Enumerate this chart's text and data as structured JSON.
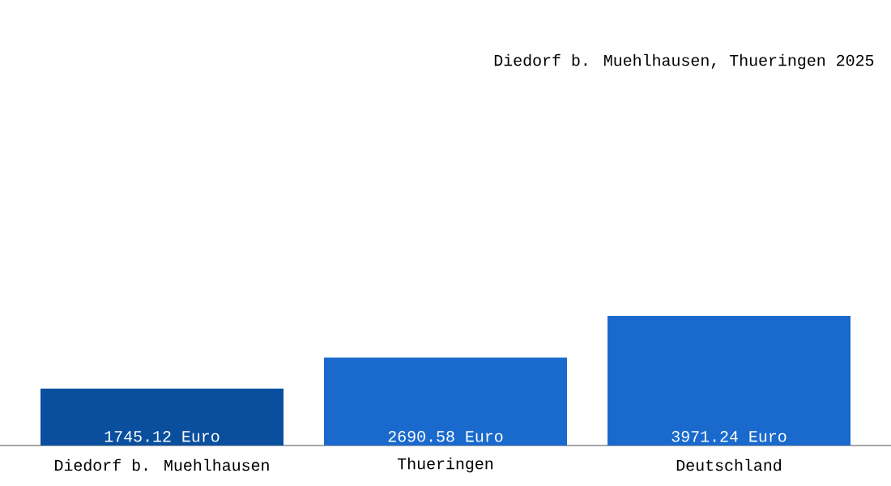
{
  "chart_data": {
    "type": "bar",
    "title": "Diedorf b. Muehlhausen, Thueringen 2025",
    "categories": [
      "Diedorf b. Muehlhausen",
      "Thueringen",
      "Deutschland"
    ],
    "values": [
      1745.12,
      2690.58,
      3971.24
    ],
    "colors": [
      "#0a4f9e",
      "#1a6acd",
      "#1a6acd"
    ],
    "value_labels": [
      "1745.12 Euro",
      "2690.58 Euro",
      "3971.24 Euro"
    ]
  }
}
